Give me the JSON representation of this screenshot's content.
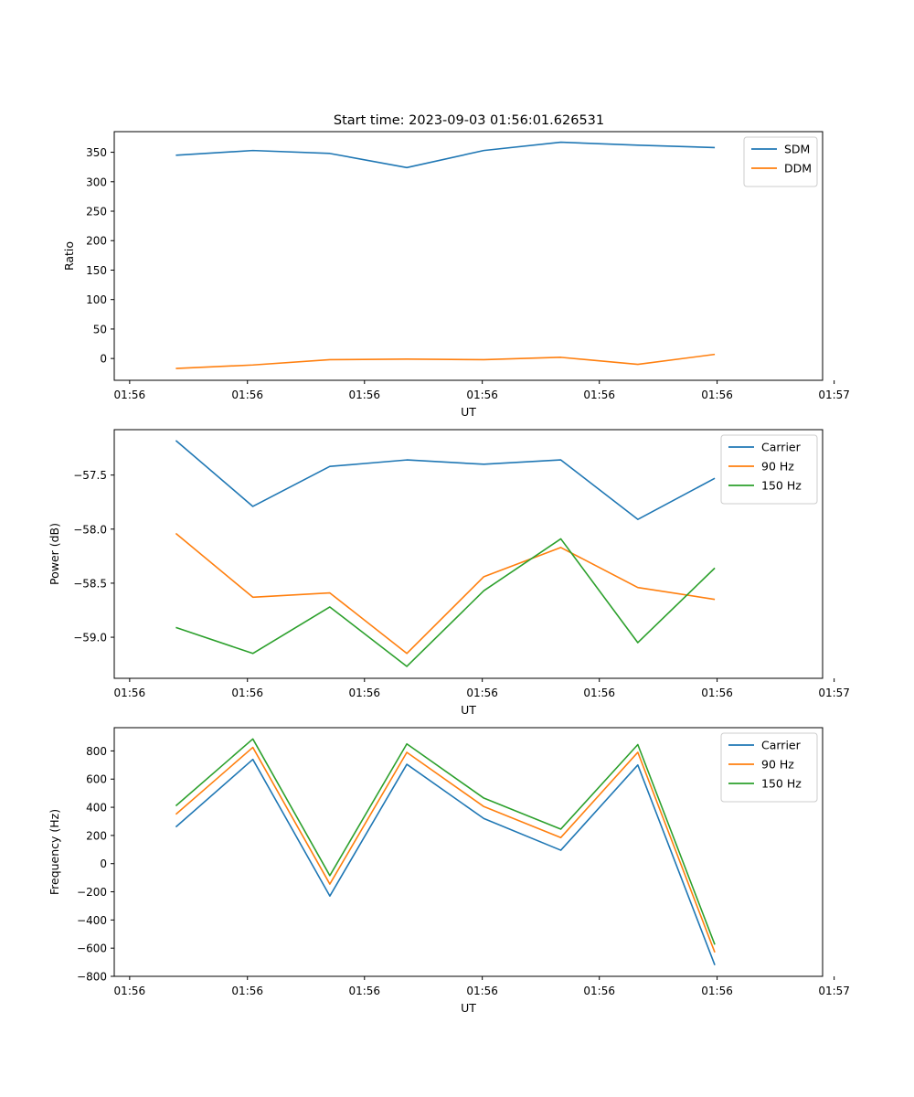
{
  "figure": {
    "title": "Start time: 2023-09-03 01:56:01.626531"
  },
  "chart_data": [
    {
      "type": "line",
      "title": "Start time: 2023-09-03 01:56:01.626531",
      "xlabel": "UT",
      "ylabel": "Ratio",
      "x": [
        1,
        2,
        3,
        4,
        5,
        6,
        7,
        8
      ],
      "xlim": [
        0.2,
        9.4
      ],
      "x_ticks": [
        0.4,
        1.93,
        3.45,
        4.98,
        6.5,
        8.03,
        9.55
      ],
      "x_tick_labels": [
        "01:56",
        "01:56",
        "01:56",
        "01:56",
        "01:56",
        "01:56",
        "01:57"
      ],
      "ylim": [
        -37,
        385
      ],
      "y_ticks": [
        0,
        50,
        100,
        150,
        200,
        250,
        300,
        350
      ],
      "y_tick_labels": [
        "0",
        "50",
        "100",
        "150",
        "200",
        "250",
        "300",
        "350"
      ],
      "grid": false,
      "legend": "top-right",
      "series": [
        {
          "name": "SDM",
          "color": "#1f77b4",
          "values": [
            345,
            353,
            348,
            324,
            353,
            367,
            362,
            358
          ]
        },
        {
          "name": "DDM",
          "color": "#ff7f0e",
          "values": [
            -17,
            -11,
            -2,
            -1,
            -2,
            2,
            -10,
            7
          ]
        }
      ]
    },
    {
      "type": "line",
      "title": "",
      "xlabel": "UT",
      "ylabel": "Power (dB)",
      "x": [
        1,
        2,
        3,
        4,
        5,
        6,
        7,
        8
      ],
      "xlim": [
        0.2,
        9.4
      ],
      "x_ticks": [
        0.4,
        1.93,
        3.45,
        4.98,
        6.5,
        8.03,
        9.55
      ],
      "x_tick_labels": [
        "01:56",
        "01:56",
        "01:56",
        "01:56",
        "01:56",
        "01:56",
        "01:57"
      ],
      "ylim": [
        -59.38,
        -57.08
      ],
      "y_ticks": [
        -59.0,
        -58.5,
        -58.0,
        -57.5
      ],
      "y_tick_labels": [
        "−59.0",
        "−58.5",
        "−58.0",
        "−57.5"
      ],
      "grid": false,
      "legend": "top-right",
      "series": [
        {
          "name": "Carrier",
          "color": "#1f77b4",
          "values": [
            -57.18,
            -57.79,
            -57.42,
            -57.36,
            -57.4,
            -57.36,
            -57.91,
            -57.53
          ]
        },
        {
          "name": "90 Hz",
          "color": "#ff7f0e",
          "values": [
            -58.04,
            -58.63,
            -58.59,
            -59.15,
            -58.44,
            -58.17,
            -58.54,
            -58.65
          ]
        },
        {
          "name": "150 Hz",
          "color": "#2ca02c",
          "values": [
            -58.91,
            -59.15,
            -58.72,
            -59.27,
            -58.57,
            -58.09,
            -59.05,
            -58.36
          ]
        }
      ]
    },
    {
      "type": "line",
      "title": "",
      "xlabel": "UT",
      "ylabel": "Frequency (Hz)",
      "x": [
        1,
        2,
        3,
        4,
        5,
        6,
        7,
        8
      ],
      "xlim": [
        0.2,
        9.4
      ],
      "x_ticks": [
        0.4,
        1.93,
        3.45,
        4.98,
        6.5,
        8.03,
        9.55
      ],
      "x_tick_labels": [
        "01:56",
        "01:56",
        "01:56",
        "01:56",
        "01:56",
        "01:56",
        "01:57"
      ],
      "ylim": [
        -800,
        965
      ],
      "y_ticks": [
        -800,
        -600,
        -400,
        -200,
        0,
        200,
        400,
        600,
        800
      ],
      "y_tick_labels": [
        "−800",
        "−600",
        "−400",
        "−200",
        "0",
        "200",
        "400",
        "600",
        "800"
      ],
      "grid": false,
      "legend": "top-right",
      "series": [
        {
          "name": "Carrier",
          "color": "#1f77b4",
          "values": [
            260,
            740,
            -230,
            705,
            320,
            95,
            700,
            -720
          ]
        },
        {
          "name": "90 Hz",
          "color": "#ff7f0e",
          "values": [
            350,
            825,
            -145,
            790,
            405,
            185,
            790,
            -630
          ]
        },
        {
          "name": "150 Hz",
          "color": "#2ca02c",
          "values": [
            410,
            885,
            -85,
            850,
            465,
            245,
            845,
            -575
          ]
        }
      ]
    }
  ]
}
